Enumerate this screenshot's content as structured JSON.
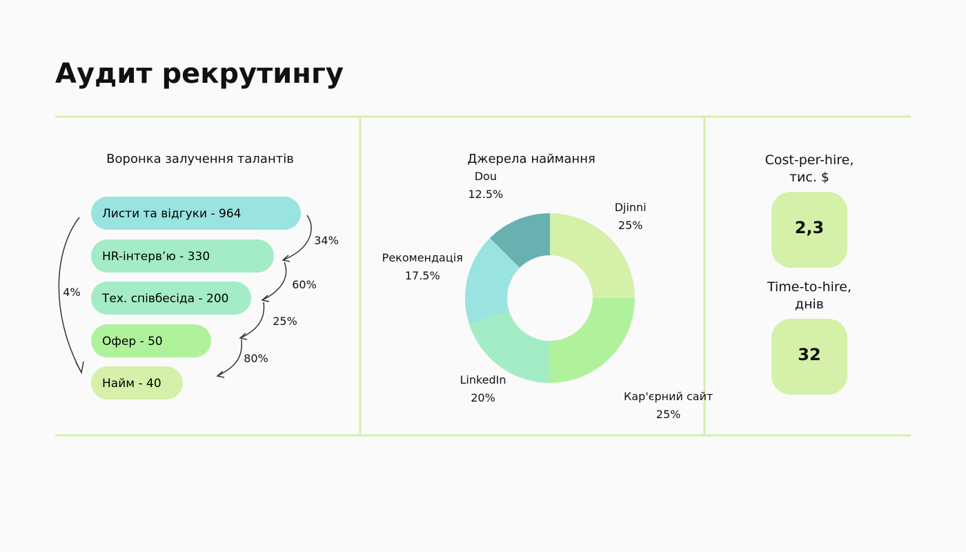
{
  "title": "Аудит рекрутингу",
  "funnel": {
    "title": "Воронка залучення талантів",
    "stages": [
      "Листи та відгуки - 964",
      "HR-інтерв’ю - 330",
      "Тех. співбесіда - 200",
      "Офер - 50",
      "Найм - 40"
    ],
    "colors": [
      "#99e3e0",
      "#a4ecc6",
      "#a4ecc6",
      "#b0f29c",
      "#d4f0a9"
    ],
    "conversions": [
      "34%",
      "60%",
      "25%",
      "80%"
    ],
    "overall": "4%"
  },
  "chart_data": {
    "type": "pie",
    "donut": true,
    "title": "Джерела наймання",
    "categories": [
      "Djinni",
      "Кар'єрний сайт",
      "LinkedIn",
      "Рекомендація",
      "Dou"
    ],
    "values": [
      25,
      25,
      20,
      17.5,
      12.5
    ],
    "value_labels": [
      "25%",
      "25%",
      "20%",
      "17.5%",
      "12.5%"
    ],
    "colors": [
      "#d4f0a9",
      "#b0f29c",
      "#a4ecc6",
      "#99e3e0",
      "#68b1b0"
    ]
  },
  "kpis": [
    {
      "label": "Cost-per-hire, тис. $",
      "value": "2,3"
    },
    {
      "label": "Time-to-hire, днів",
      "value": "32"
    }
  ]
}
